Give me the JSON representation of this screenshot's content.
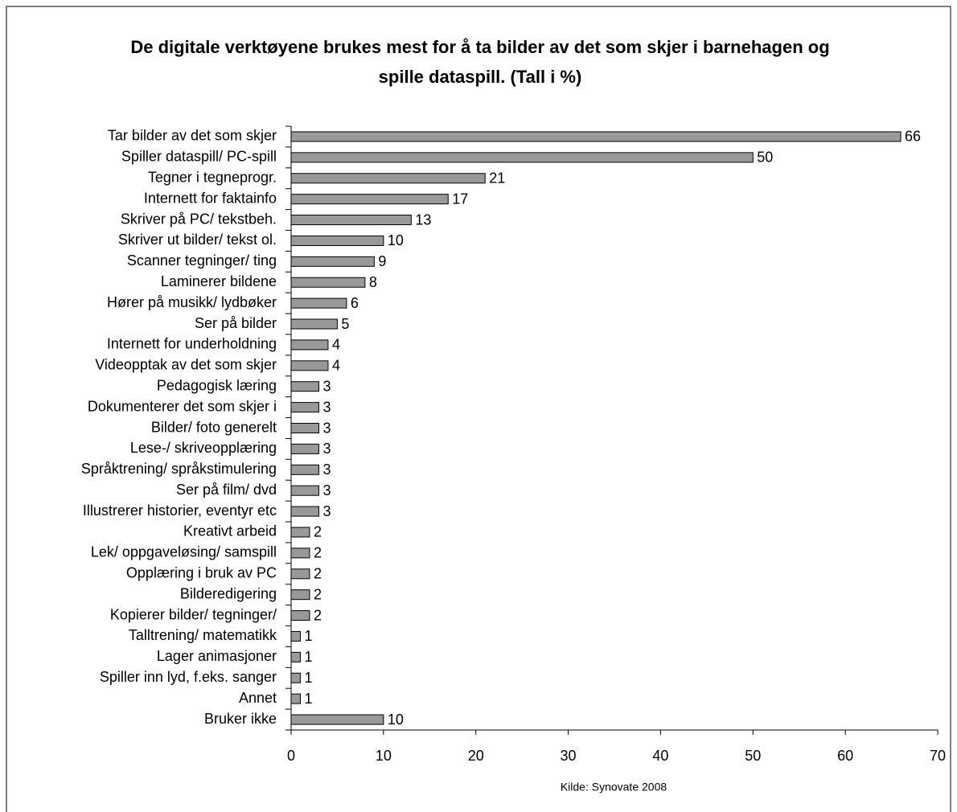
{
  "chart_data": {
    "type": "bar",
    "orientation": "horizontal",
    "title": "De digitale verktøyene brukes mest for å ta bilder av det som skjer i barnehagen og spille dataspill. (Tall i %)",
    "categories": [
      "Tar bilder av det som skjer",
      "Spiller dataspill/ PC-spill",
      "Tegner i tegneprogr.",
      "Internett for faktainfo",
      "Skriver på PC/ tekstbeh.",
      "Skriver ut bilder/ tekst ol.",
      "Scanner tegninger/ ting",
      "Laminerer bildene",
      "Hører på musikk/ lydbøker",
      "Ser på bilder",
      "Internett for underholdning",
      "Videopptak av det som skjer",
      "Pedagogisk læring",
      "Dokumenterer det som skjer i",
      "Bilder/ foto generelt",
      "Lese-/ skriveopplæring",
      "Språktrening/ språkstimulering",
      "Ser på film/ dvd",
      "Illustrerer historier, eventyr etc",
      "Kreativt arbeid",
      "Lek/ oppgaveløsing/ samspill",
      "Opplæring i bruk av PC",
      "Bilderedigering",
      "Kopierer bilder/ tegninger/",
      "Talltrening/ matematikk",
      "Lager animasjoner",
      "Spiller inn lyd, f.eks. sanger",
      "Annet",
      "Bruker ikke"
    ],
    "values": [
      66,
      50,
      21,
      17,
      13,
      10,
      9,
      8,
      6,
      5,
      4,
      4,
      3,
      3,
      3,
      3,
      3,
      3,
      3,
      2,
      2,
      2,
      2,
      2,
      1,
      1,
      1,
      1,
      10
    ],
    "color": "#999999",
    "xlim": [
      0,
      70
    ],
    "xticks": [
      0,
      10,
      20,
      30,
      40,
      50,
      60,
      70
    ],
    "source": "Kilde: Synovate 2008"
  }
}
